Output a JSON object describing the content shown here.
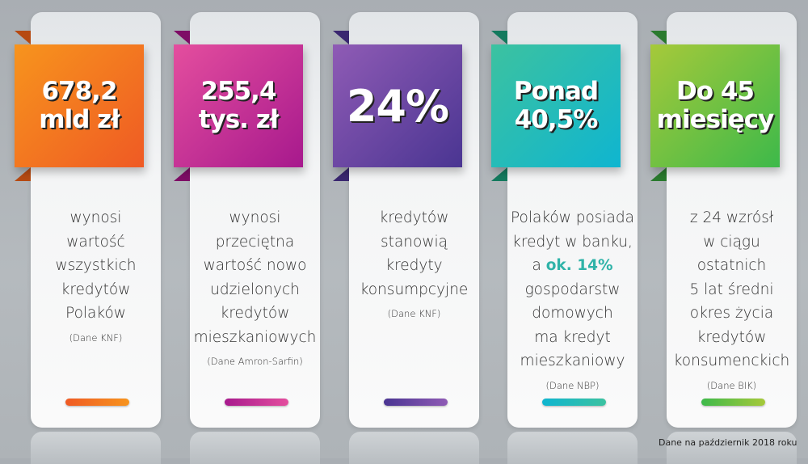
{
  "cards": [
    {
      "headline": "678,2\nmld zł",
      "lines": [
        "wynosi",
        "wartość",
        "wszystkich",
        "kredytów",
        "Polaków"
      ],
      "source": "(Dane KNF)",
      "color_from": "#f7941d",
      "color_to": "#ef5a24",
      "fold": "#b64a12"
    },
    {
      "headline": "255,4\ntys. zł",
      "lines": [
        "wynosi",
        "przeciętna",
        "wartość nowo",
        "udzielonych",
        "kredytów",
        "mieszkaniowych"
      ],
      "source": "(Dane Amron-Sarfin)",
      "color_from": "#e44e9e",
      "color_to": "#a7198d",
      "fold": "#7e0d66"
    },
    {
      "headline": "24%",
      "lines": [
        "kredytów",
        "stanowią",
        "kredyty",
        "konsumpcyjne"
      ],
      "source": "(Dane KNF)",
      "color_from": "#8f5bb5",
      "color_to": "#4a3592",
      "fold": "#3a2770"
    },
    {
      "headline": "Ponad\n40,5%",
      "lines": [
        "Polaków posiada",
        "kredyt w banku,"
      ],
      "highlight_prefix": "a ",
      "highlight": "ok. 14%",
      "lines_after": [
        "gospodarstw",
        "domowych",
        "ma kredyt",
        "mieszkaniowy"
      ],
      "source": "(Dane NBP)",
      "color_from": "#3cc2a0",
      "color_to": "#0fb5d0",
      "fold": "#137a5e"
    },
    {
      "headline": "Do 45\nmiesięcy",
      "lines": [
        "z 24 wzrósł",
        "w ciągu ostatnich",
        "5 lat średni",
        "okres życia",
        "kredytów",
        "konsumenckich"
      ],
      "source": "(Dane BIK)",
      "color_from": "#a6c93a",
      "color_to": "#3db94a",
      "fold": "#2a7a2e"
    }
  ],
  "footer_note": "Dane na październik 2018 roku",
  "highlight_color": "#2fb3a8"
}
